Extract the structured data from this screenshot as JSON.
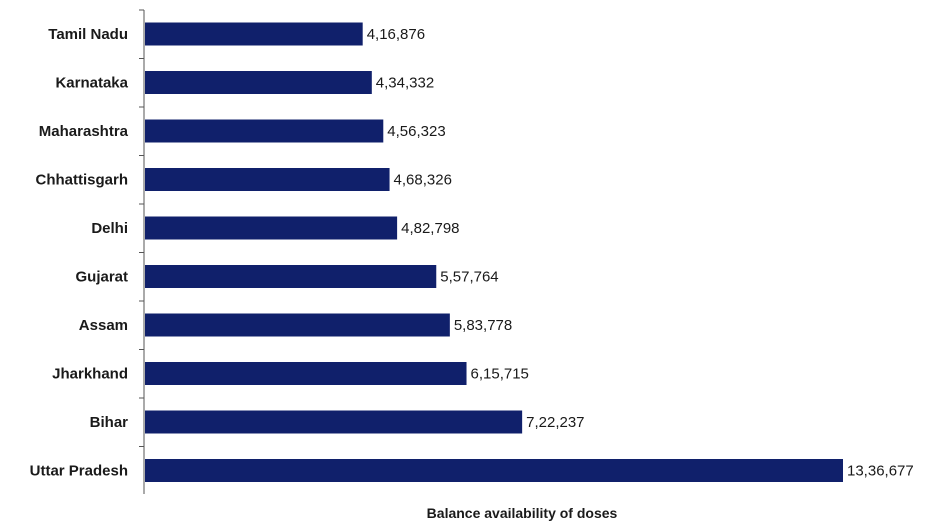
{
  "chart_data": {
    "type": "bar",
    "orientation": "horizontal",
    "title": "",
    "xlabel": "Balance availability of doses",
    "ylabel": "",
    "categories": [
      "Tamil Nadu",
      "Karnataka",
      "Maharashtra",
      "Chhattisgarh",
      "Delhi",
      "Gujarat",
      "Assam",
      "Jharkhand",
      "Bihar",
      "Uttar Pradesh"
    ],
    "values": [
      416876,
      434332,
      456323,
      468326,
      482798,
      557764,
      583778,
      615715,
      722237,
      1336677
    ],
    "value_labels": [
      "4,16,876",
      "4,34,332",
      "4,56,323",
      "4,68,326",
      "4,82,798",
      "5,57,764",
      "5,83,778",
      "6,15,715",
      "7,22,237",
      "13,36,677"
    ],
    "xlim": [
      0,
      1336677
    ],
    "grid": false,
    "legend": "none",
    "bar_color": "#10206b"
  }
}
